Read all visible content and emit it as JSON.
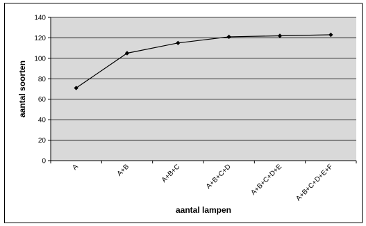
{
  "chart_data": {
    "type": "line",
    "title": "",
    "xlabel": "aantal lampen",
    "ylabel": "aantal soorten",
    "categories": [
      "A",
      "A+B",
      "A+B+C",
      "A+B+C+D",
      "A+B+C+D+E",
      "A+B+C+D+E+F"
    ],
    "series": [
      {
        "values": [
          71,
          105,
          115,
          121,
          122,
          123
        ],
        "color": "#000000",
        "marker": "diamond"
      }
    ],
    "ylim": [
      0,
      140
    ],
    "yticks": [
      0,
      20,
      40,
      60,
      80,
      100,
      120,
      140
    ],
    "grid": true,
    "legend": "none",
    "plot_background": "#d9d9d9",
    "gridline_color": "#000000"
  }
}
